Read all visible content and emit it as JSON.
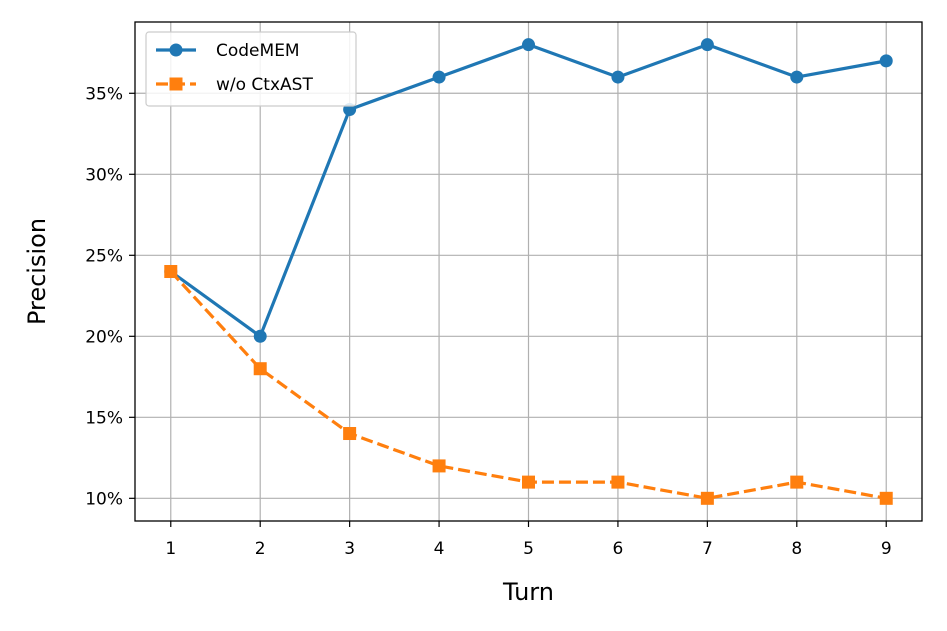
{
  "chart_data": {
    "type": "line",
    "x": [
      1,
      2,
      3,
      4,
      5,
      6,
      7,
      8,
      9
    ],
    "xlabel": "Turn",
    "ylabel": "Precision",
    "xlim": [
      0.6,
      9.4
    ],
    "ylim": [
      8.6,
      39.4
    ],
    "xticks": [
      "1",
      "2",
      "3",
      "4",
      "5",
      "6",
      "7",
      "8",
      "9"
    ],
    "yticks": [
      {
        "value": 10,
        "label": "10%"
      },
      {
        "value": 15,
        "label": "15%"
      },
      {
        "value": 20,
        "label": "20%"
      },
      {
        "value": 25,
        "label": "25%"
      },
      {
        "value": 30,
        "label": "30%"
      },
      {
        "value": 35,
        "label": "35%"
      }
    ],
    "grid": true,
    "legend_position": "top-left",
    "series": [
      {
        "name": "CodeMEM",
        "values": [
          24,
          20,
          34,
          36,
          38,
          36,
          38,
          36,
          37
        ],
        "color": "#1f77b4",
        "marker": "circle",
        "linestyle": "solid"
      },
      {
        "name": "w/o CtxAST",
        "values": [
          24,
          18,
          14,
          12,
          11,
          11,
          10,
          11,
          10
        ],
        "color": "#ff7f0e",
        "marker": "square",
        "linestyle": "dashed"
      }
    ]
  }
}
